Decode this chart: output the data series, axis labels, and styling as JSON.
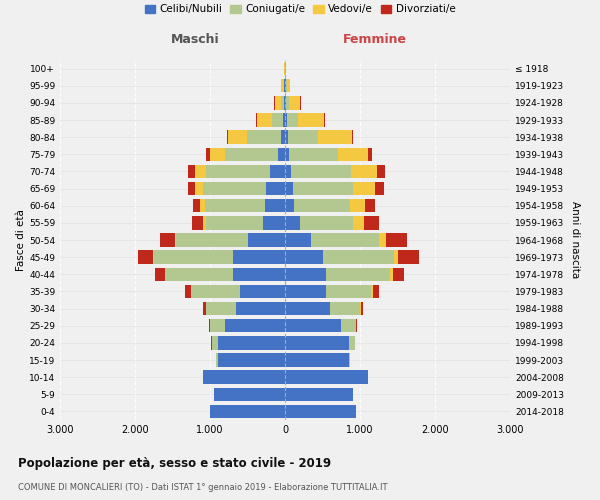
{
  "age_groups": [
    "0-4",
    "5-9",
    "10-14",
    "15-19",
    "20-24",
    "25-29",
    "30-34",
    "35-39",
    "40-44",
    "45-49",
    "50-54",
    "55-59",
    "60-64",
    "65-69",
    "70-74",
    "75-79",
    "80-84",
    "85-89",
    "90-94",
    "95-99",
    "100+"
  ],
  "birth_years": [
    "2014-2018",
    "2009-2013",
    "2004-2008",
    "1999-2003",
    "1994-1998",
    "1989-1993",
    "1984-1988",
    "1979-1983",
    "1974-1978",
    "1969-1973",
    "1964-1968",
    "1959-1963",
    "1954-1958",
    "1949-1953",
    "1944-1948",
    "1939-1943",
    "1934-1938",
    "1929-1933",
    "1924-1928",
    "1919-1923",
    "≤ 1918"
  ],
  "colors": {
    "celibe": "#4472C4",
    "coniugato": "#B3C890",
    "vedovo": "#F5C842",
    "divorziato": "#C0281C"
  },
  "maschi": {
    "celibe": [
      1000,
      950,
      1100,
      900,
      900,
      800,
      650,
      600,
      700,
      700,
      500,
      300,
      270,
      250,
      200,
      100,
      60,
      30,
      20,
      10,
      5
    ],
    "coniugato": [
      0,
      0,
      0,
      20,
      80,
      200,
      400,
      650,
      900,
      1050,
      950,
      750,
      800,
      850,
      850,
      700,
      450,
      150,
      40,
      10,
      0
    ],
    "vedovo": [
      0,
      0,
      0,
      0,
      0,
      0,
      0,
      5,
      5,
      10,
      20,
      40,
      60,
      100,
      150,
      200,
      250,
      200,
      80,
      30,
      5
    ],
    "divorziato": [
      0,
      0,
      0,
      0,
      5,
      10,
      40,
      80,
      130,
      200,
      200,
      150,
      100,
      90,
      90,
      60,
      20,
      10,
      5,
      0,
      0
    ]
  },
  "femmine": {
    "nubile": [
      950,
      900,
      1100,
      850,
      850,
      750,
      600,
      550,
      550,
      500,
      350,
      200,
      120,
      100,
      80,
      50,
      40,
      20,
      15,
      10,
      5
    ],
    "coniugata": [
      0,
      0,
      0,
      20,
      80,
      200,
      400,
      600,
      850,
      950,
      900,
      700,
      750,
      800,
      800,
      650,
      400,
      150,
      40,
      10,
      0
    ],
    "vedova": [
      0,
      0,
      0,
      0,
      0,
      0,
      10,
      20,
      40,
      60,
      100,
      150,
      200,
      300,
      350,
      400,
      450,
      350,
      150,
      50,
      10
    ],
    "divorziata": [
      0,
      0,
      0,
      0,
      0,
      10,
      30,
      80,
      150,
      270,
      270,
      200,
      130,
      120,
      100,
      60,
      20,
      15,
      5,
      0,
      0
    ]
  },
  "title": "Popolazione per età, sesso e stato civile - 2019",
  "subtitle": "COMUNE DI MONCALIERI (TO) - Dati ISTAT 1° gennaio 2019 - Elaborazione TUTTITALIA.IT",
  "xlabel_left": "Maschi",
  "xlabel_right": "Femmine",
  "ylabel_left": "Fasce di età",
  "ylabel_right": "Anni di nascita",
  "xlim": 3000,
  "legend_labels": [
    "Celibi/Nubili",
    "Coniugati/e",
    "Vedovi/e",
    "Divorziati/e"
  ],
  "bg_color": "#F0F0F0",
  "grid_color": "#CCCCCC"
}
